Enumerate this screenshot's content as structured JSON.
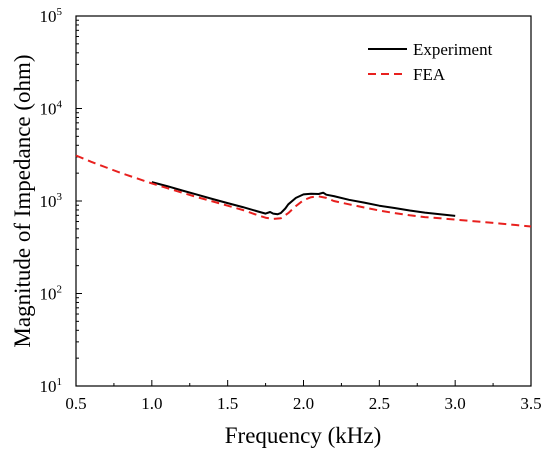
{
  "chart_data": {
    "type": "line",
    "title": "",
    "xlabel": "Frequency (kHz)",
    "ylabel": "Magnitude of Impedance (ohm)",
    "xlim": [
      0.5,
      3.5
    ],
    "ylim": [
      10,
      100000
    ],
    "yscale": "log",
    "x_ticks": [
      "0.5",
      "1.0",
      "1.5",
      "2.0",
      "2.5",
      "3.0",
      "3.5"
    ],
    "x_tick_values": [
      0.5,
      1.0,
      1.5,
      2.0,
      2.5,
      3.0,
      3.5
    ],
    "y_tick_values": [
      10,
      100,
      1000,
      10000,
      100000
    ],
    "y_tick_exponents": [
      "1",
      "2",
      "3",
      "4",
      "5"
    ],
    "y_tick_base": "10",
    "grid": false,
    "legend_position": "top-right",
    "series": [
      {
        "name": "Experiment",
        "color": "#000000",
        "style": "solid",
        "x": [
          1.0,
          1.1,
          1.2,
          1.3,
          1.4,
          1.5,
          1.6,
          1.7,
          1.75,
          1.78,
          1.8,
          1.83,
          1.85,
          1.88,
          1.9,
          1.95,
          2.0,
          2.05,
          2.1,
          2.13,
          2.15,
          2.2,
          2.3,
          2.4,
          2.5,
          2.6,
          2.7,
          2.8,
          2.9,
          3.0
        ],
        "y": [
          1600,
          1450,
          1300,
          1170,
          1050,
          950,
          860,
          770,
          730,
          760,
          730,
          720,
          740,
          830,
          920,
          1080,
          1180,
          1200,
          1190,
          1230,
          1170,
          1130,
          1030,
          960,
          890,
          840,
          790,
          750,
          720,
          690
        ]
      },
      {
        "name": "FEA",
        "color": "#e8201e",
        "style": "dashed",
        "x": [
          0.5,
          0.6,
          0.7,
          0.8,
          0.9,
          1.0,
          1.1,
          1.2,
          1.3,
          1.4,
          1.5,
          1.6,
          1.7,
          1.75,
          1.8,
          1.85,
          1.9,
          1.95,
          2.0,
          2.05,
          2.1,
          2.15,
          2.2,
          2.3,
          2.4,
          2.5,
          2.6,
          2.7,
          2.8,
          2.9,
          3.0,
          3.1,
          3.2,
          3.3,
          3.4,
          3.5
        ],
        "y": [
          3100,
          2650,
          2300,
          2000,
          1760,
          1550,
          1380,
          1230,
          1100,
          990,
          890,
          800,
          700,
          660,
          640,
          650,
          740,
          880,
          1020,
          1100,
          1120,
          1080,
          1000,
          920,
          850,
          790,
          740,
          700,
          670,
          650,
          630,
          610,
          590,
          570,
          550,
          530
        ]
      }
    ]
  }
}
